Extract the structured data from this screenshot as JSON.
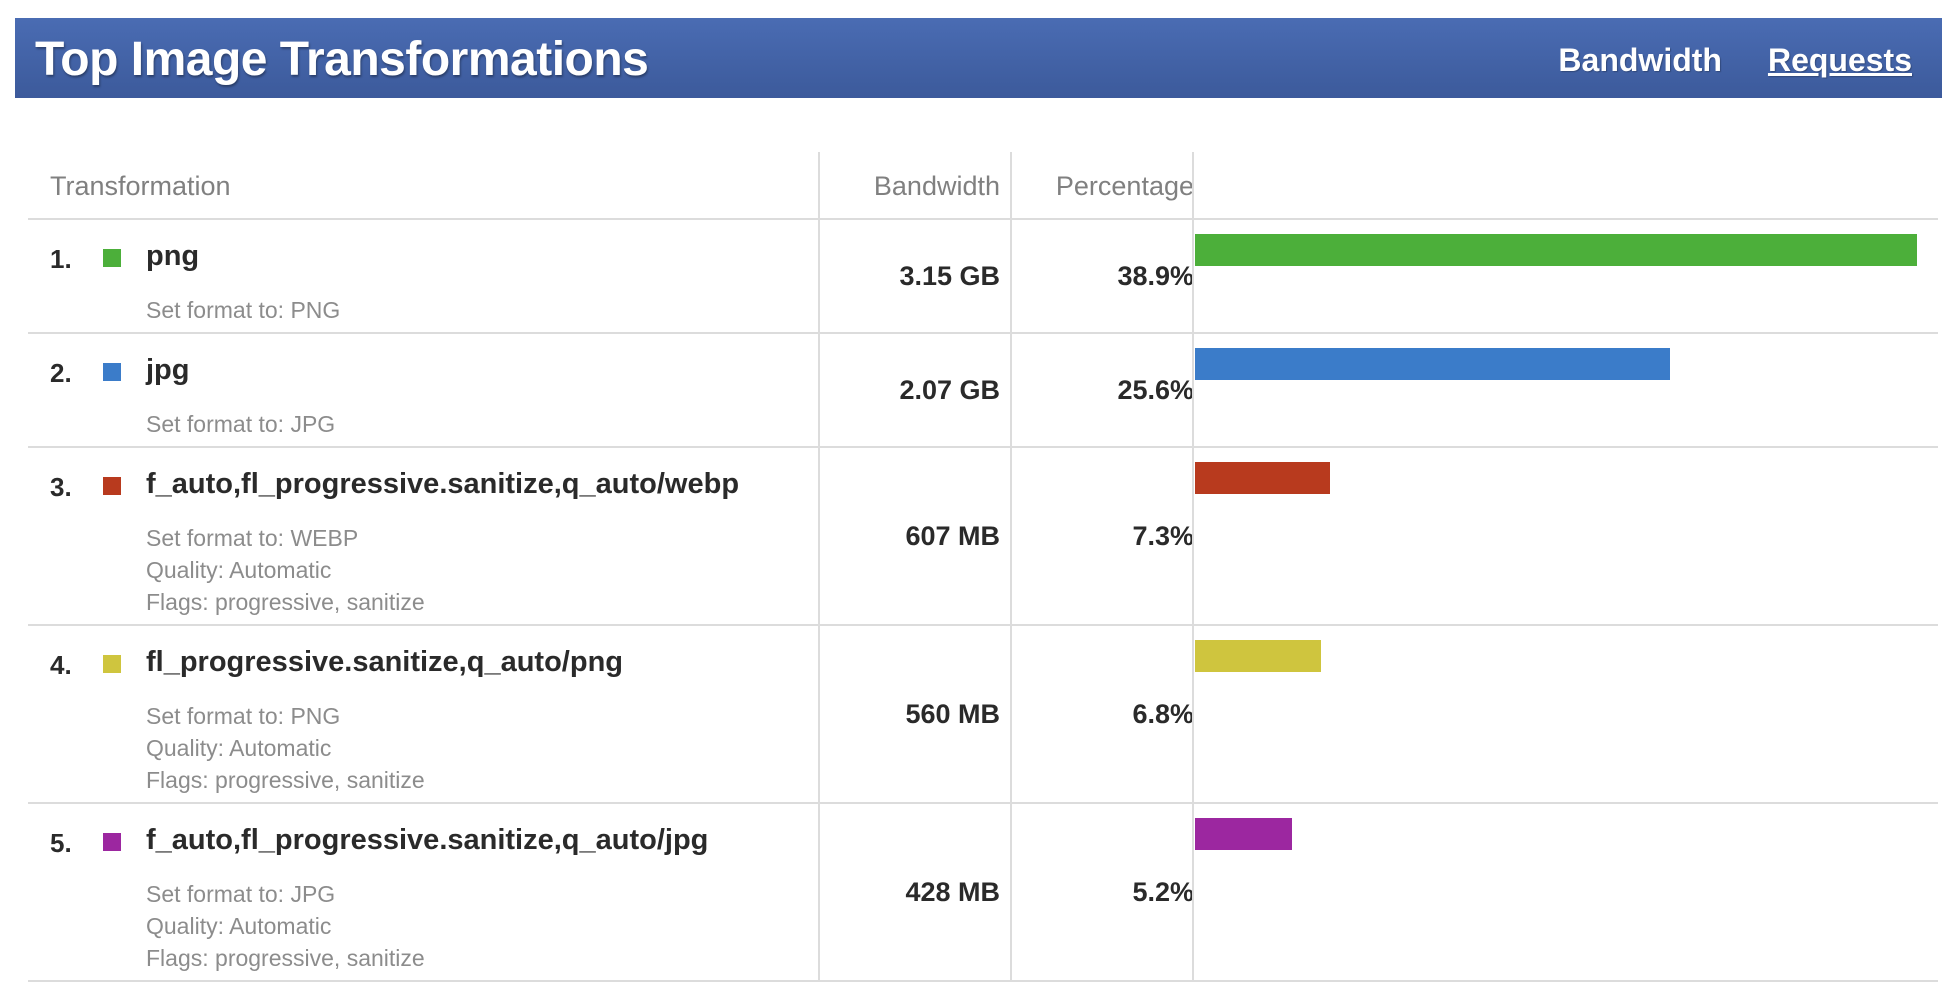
{
  "header": {
    "title": "Top Image Transformations",
    "nav_bandwidth": "Bandwidth",
    "nav_requests": "Requests"
  },
  "table": {
    "columns": {
      "transformation": "Transformation",
      "bandwidth": "Bandwidth",
      "percentage": "Percentage"
    },
    "rows": [
      {
        "rank": "1.",
        "name": "png",
        "color": "#4caf3a",
        "details": [
          "Set format to: PNG"
        ],
        "bandwidth": "3.15 GB",
        "percentage": "38.9%",
        "share": 38.9
      },
      {
        "rank": "2.",
        "name": "jpg",
        "color": "#3b7cc9",
        "details": [
          "Set format to: JPG"
        ],
        "bandwidth": "2.07 GB",
        "percentage": "25.6%",
        "share": 25.6
      },
      {
        "rank": "3.",
        "name": "f_auto,fl_progressive.sanitize,q_auto/webp",
        "color": "#b83a1e",
        "details": [
          "Set format to: WEBP",
          "Quality: Automatic",
          "Flags: progressive, sanitize"
        ],
        "bandwidth": "607 MB",
        "percentage": "7.3%",
        "share": 7.3
      },
      {
        "rank": "4.",
        "name": "fl_progressive.sanitize,q_auto/png",
        "color": "#cfc53e",
        "details": [
          "Set format to: PNG",
          "Quality: Automatic",
          "Flags: progressive, sanitize"
        ],
        "bandwidth": "560 MB",
        "percentage": "6.8%",
        "share": 6.8
      },
      {
        "rank": "5.",
        "name": "f_auto,fl_progressive.sanitize,q_auto/jpg",
        "color": "#9c27a0",
        "details": [
          "Set format to: JPG",
          "Quality: Automatic",
          "Flags: progressive, sanitize"
        ],
        "bandwidth": "428 MB",
        "percentage": "5.2%",
        "share": 5.2
      }
    ]
  }
}
